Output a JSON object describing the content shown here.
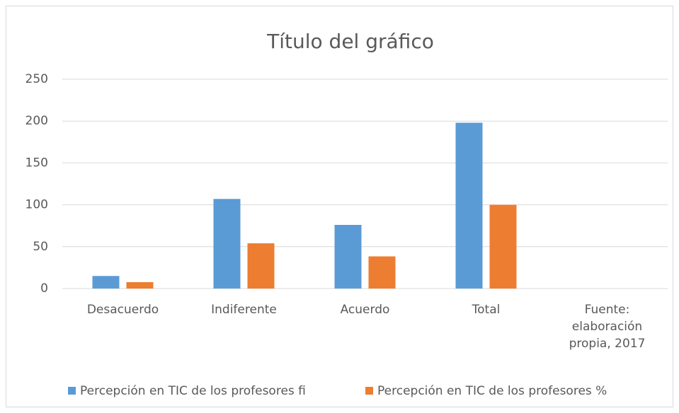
{
  "chart_data": {
    "type": "bar",
    "title": "Título del gráfico",
    "categories": [
      "Desacuerdo",
      "Indiferente",
      "Acuerdo",
      "Total",
      "Fuente: elaboración propia, 2017"
    ],
    "series": [
      {
        "name": "Percepción en TIC de los profesores fi",
        "color": "#5b9bd5",
        "values": [
          15,
          107,
          76,
          198,
          null
        ]
      },
      {
        "name": "Percepción en TIC de los profesores %",
        "color": "#ed7d31",
        "values": [
          7.6,
          54,
          38.4,
          100,
          null
        ]
      }
    ],
    "ylim": [
      0,
      250
    ],
    "yticks": [
      0,
      50,
      100,
      150,
      200,
      250
    ],
    "grid": true,
    "legend": "bottom"
  }
}
